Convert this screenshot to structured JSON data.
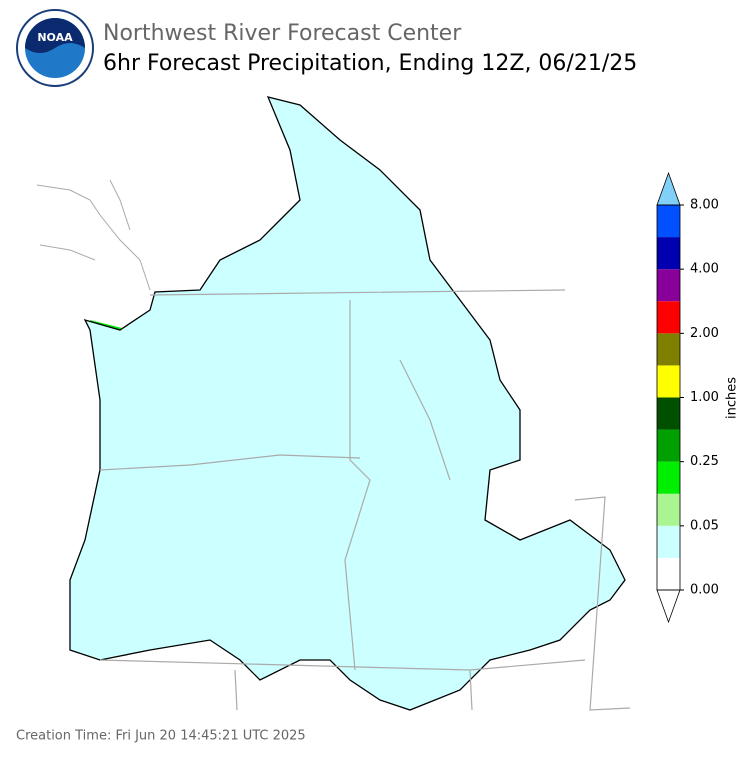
{
  "header": {
    "title": "Northwest River Forecast Center",
    "subtitle": "6hr Forecast Precipitation, Ending 12Z, 06/21/25",
    "logo_text": "NOAA"
  },
  "colorbar": {
    "label": "inches",
    "colors": [
      "#ffffff",
      "#ccffff",
      "#aaf592",
      "#00ee00",
      "#00a000",
      "#005000",
      "#ffff00",
      "#808000",
      "#ff0000",
      "#880099",
      "#0000b0",
      "#0050ff"
    ],
    "over_color": "#80d0f8",
    "ticks": [
      {
        "value": 0,
        "label": "0.00"
      },
      {
        "value": 0.05,
        "label": "0.05"
      },
      {
        "value": 0.25,
        "label": "0.25"
      },
      {
        "value": 1,
        "label": "1.00"
      },
      {
        "value": 2,
        "label": "2.00"
      },
      {
        "value": 4,
        "label": "4.00"
      },
      {
        "value": 8,
        "label": "8.00"
      }
    ]
  },
  "footer": {
    "creation_time": "Creation Time: Fri Jun 20 14:45:21 UTC 2025"
  }
}
